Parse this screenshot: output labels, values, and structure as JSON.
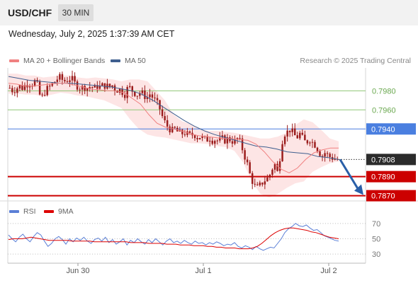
{
  "header": {
    "symbol": "USD/CHF",
    "timeframe": "30 MIN",
    "datetime": "Wednesday, July 2, 2025 1:37:39 AM CET"
  },
  "legend": {
    "ma20_label": "MA 20 + Bollinger Bands",
    "ma50_label": "MA 50",
    "credit": "Research © 2025 Trading Central",
    "rsi_label": "RSI",
    "ma9_label": "9MA"
  },
  "colors": {
    "ma20": "#f08080",
    "ma50": "#3f5f8f",
    "bollinger_fill": "#fde0e0",
    "candle": "#9b1c1c",
    "support": "#cc0000",
    "resistance": "#4a7fe0",
    "target": "#8fc776",
    "arrow": "#2a5fa8",
    "rsi": "#5b7fd6",
    "rsi_ma": "#dd0000"
  },
  "chart_data": [
    {
      "type": "candlestick",
      "title": "USD/CHF 30 MIN",
      "x_tick_labels": [
        "Jun 30",
        "Jul 1",
        "Jul 2"
      ],
      "ylim": [
        0.7866,
        0.8004
      ],
      "current_price": 0.7908,
      "levels": [
        {
          "value": 0.798,
          "label": "0.7980",
          "kind": "target"
        },
        {
          "value": 0.796,
          "label": "0.7960",
          "kind": "target"
        },
        {
          "value": 0.794,
          "label": "0.7940",
          "kind": "resistance"
        },
        {
          "value": 0.7908,
          "label": "0.7908",
          "kind": "current"
        },
        {
          "value": 0.789,
          "label": "0.7890",
          "kind": "support"
        },
        {
          "value": 0.787,
          "label": "0.7870",
          "kind": "support"
        }
      ],
      "close_path": [
        0.7983,
        0.798,
        0.7982,
        0.7985,
        0.7983,
        0.7986,
        0.7988,
        0.7987,
        0.799,
        0.7985,
        0.797,
        0.7978,
        0.7982,
        0.7985,
        0.7988,
        0.7992,
        0.7994,
        0.7991,
        0.799,
        0.7993,
        0.7992,
        0.7987,
        0.7984,
        0.7983,
        0.7984,
        0.7983,
        0.7985,
        0.7982,
        0.7985,
        0.7984,
        0.7986,
        0.7985,
        0.7984,
        0.7986,
        0.798,
        0.7982,
        0.7979,
        0.7976,
        0.7985,
        0.7981,
        0.7978,
        0.7976,
        0.7979,
        0.7975,
        0.7973,
        0.7977,
        0.7972,
        0.7968,
        0.7962,
        0.7952,
        0.7945,
        0.7941,
        0.7938,
        0.794,
        0.7936,
        0.7935,
        0.7936,
        0.7934,
        0.7933,
        0.7935,
        0.7931,
        0.7932,
        0.793,
        0.7928,
        0.7931,
        0.7928,
        0.7929,
        0.7927,
        0.793,
        0.7928,
        0.793,
        0.7928,
        0.7926,
        0.793,
        0.7925,
        0.7914,
        0.7905,
        0.7892,
        0.7883,
        0.7877,
        0.788,
        0.7884,
        0.7887,
        0.7889,
        0.7898,
        0.7903,
        0.7892,
        0.7924,
        0.7935,
        0.7937,
        0.794,
        0.7934,
        0.7931,
        0.7935,
        0.7929,
        0.7925,
        0.793,
        0.7926,
        0.7923,
        0.7917,
        0.7911,
        0.7915,
        0.7912,
        0.791,
        0.7909,
        0.7908
      ],
      "ma20_path": [
        0.7988,
        0.7987,
        0.7985,
        0.7985,
        0.7986,
        0.7987,
        0.7988,
        0.7988,
        0.7986,
        0.7984,
        0.7982,
        0.7981,
        0.798,
        0.798,
        0.7978,
        0.7972,
        0.7966,
        0.7955,
        0.7946,
        0.7942,
        0.794,
        0.7938,
        0.7935,
        0.7933,
        0.7932,
        0.7931,
        0.793,
        0.793,
        0.7929,
        0.7928,
        0.7924,
        0.7916,
        0.7906,
        0.7898,
        0.7894,
        0.7899,
        0.7908,
        0.7915,
        0.7918,
        0.792,
        0.792
      ],
      "ma50_path": [
        0.7995,
        0.7993,
        0.7991,
        0.799,
        0.7989,
        0.7988,
        0.7988,
        0.7987,
        0.7986,
        0.7985,
        0.7984,
        0.7982,
        0.798,
        0.7976,
        0.797,
        0.7963,
        0.7956,
        0.7949,
        0.7943,
        0.7938,
        0.7934,
        0.7931,
        0.7928,
        0.7925,
        0.7922,
        0.7921,
        0.7919,
        0.7916,
        0.7915,
        0.7914,
        0.7911,
        0.791,
        0.7908
      ],
      "bollinger_upper": [
        0.7998,
        0.7998,
        0.7996,
        0.7996,
        0.7994,
        0.7995,
        0.7996,
        0.7996,
        0.7994,
        0.7993,
        0.7994,
        0.7993,
        0.7992,
        0.799,
        0.7992,
        0.7992,
        0.799,
        0.798,
        0.797,
        0.7955,
        0.7948,
        0.7945,
        0.794,
        0.7938,
        0.7938,
        0.7937,
        0.7936,
        0.7934,
        0.7932,
        0.793,
        0.793,
        0.7932,
        0.7936,
        0.7944,
        0.795,
        0.7947,
        0.7939,
        0.793,
        0.7927
      ],
      "bollinger_lower": [
        0.7977,
        0.7977,
        0.7976,
        0.7976,
        0.7974,
        0.7976,
        0.7978,
        0.7977,
        0.7975,
        0.7974,
        0.7972,
        0.797,
        0.7966,
        0.7962,
        0.795,
        0.794,
        0.7934,
        0.7932,
        0.7931,
        0.7929,
        0.7927,
        0.7925,
        0.7925,
        0.7924,
        0.7922,
        0.7921,
        0.7917,
        0.7905,
        0.7885,
        0.7872,
        0.7868,
        0.7872,
        0.7878,
        0.7883,
        0.7885,
        0.7895,
        0.79,
        0.7904,
        0.7906
      ],
      "forecast": {
        "from": 0.7908,
        "to": 0.7873
      }
    },
    {
      "type": "line",
      "title": "RSI",
      "ylim": [
        20,
        80
      ],
      "y_ticks": [
        30,
        50,
        70
      ],
      "series": [
        {
          "name": "RSI",
          "values": [
            55,
            50,
            46,
            52,
            56,
            50,
            46,
            53,
            58,
            55,
            47,
            40,
            44,
            50,
            53,
            49,
            43,
            50,
            46,
            51,
            48,
            52,
            47,
            44,
            49,
            51,
            47,
            52,
            45,
            49,
            43,
            46,
            50,
            42,
            48,
            45,
            50,
            46,
            43,
            49,
            45,
            50,
            46,
            42,
            47,
            50,
            45,
            47,
            44,
            48,
            45,
            43,
            47,
            44,
            45,
            42,
            45,
            43,
            46,
            44,
            41,
            43,
            42,
            45,
            40,
            38,
            41,
            39,
            36,
            40,
            37,
            35,
            37,
            39,
            38,
            44,
            50,
            58,
            63,
            66,
            70,
            67,
            66,
            68,
            64,
            61,
            62,
            58,
            54,
            52,
            50,
            48,
            47
          ]
        },
        {
          "name": "9MA",
          "values": [
            49,
            50,
            50,
            50,
            51,
            52,
            51,
            50,
            49,
            48,
            48,
            48,
            48,
            48,
            47,
            47,
            47,
            47,
            47,
            46,
            46,
            46,
            46,
            46,
            46,
            46,
            46,
            45,
            45,
            45,
            45,
            44,
            44,
            44,
            44,
            43,
            43,
            43,
            42,
            42,
            42,
            41,
            41,
            41,
            40,
            40,
            39,
            39,
            38,
            38,
            38,
            37,
            37,
            37,
            38,
            40,
            44,
            49,
            54,
            58,
            61,
            63,
            64,
            64,
            63,
            62,
            61,
            59,
            58,
            56,
            54,
            52,
            51,
            50
          ]
        }
      ]
    }
  ]
}
